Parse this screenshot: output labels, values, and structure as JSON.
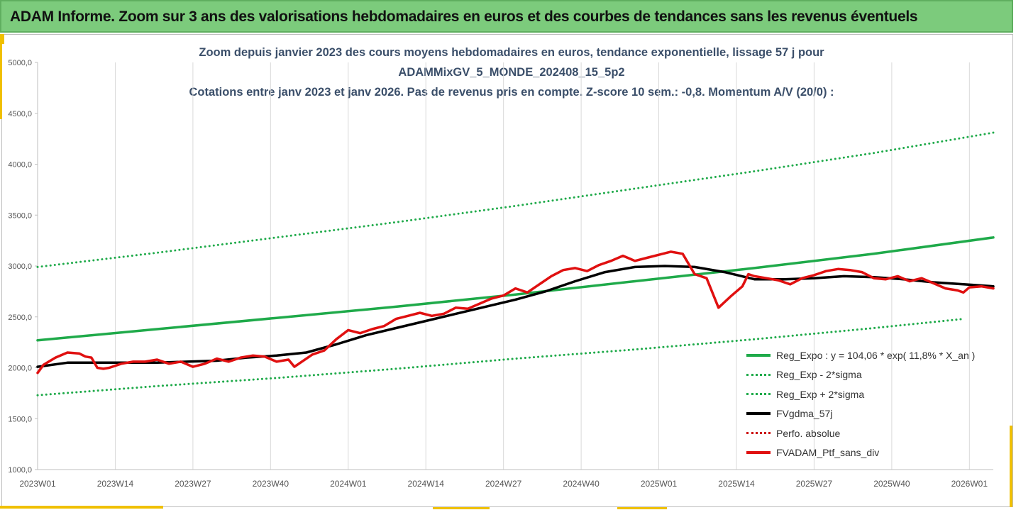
{
  "banner": {
    "title": "ADAM Informe. Zoom sur 3 ans des valorisations hebdomadaires en euros et des courbes de tendances sans les revenus éventuels"
  },
  "chart_data": {
    "type": "line",
    "title_lines": [
      "Zoom depuis janvier 2023 des cours moyens hebdomadaires  en euros, tendance exponentielle, lissage 57 j pour",
      "ADAMMixGV_5_MONDE_202408_15_5p2",
      "Cotations entre janv 2023 et janv 2026. Pas de revenus pris en compte. Z-score 10 sem.: -0,8. Momentum A/V (20/0) :"
    ],
    "xlabel": "",
    "ylabel": "",
    "ylim": [
      1000,
      5000
    ],
    "y_ticks": [
      "1000,0",
      "1500,0",
      "2000,0",
      "2500,0",
      "3000,0",
      "3500,0",
      "4000,0",
      "4500,0",
      "5000,0"
    ],
    "x_tick_labels": [
      "2023W01",
      "2023W14",
      "2023W27",
      "2023W40",
      "2024W01",
      "2024W14",
      "2024W27",
      "2024W40",
      "2025W01",
      "2025W14",
      "2025W27",
      "2025W40",
      "2026W01"
    ],
    "x_range_weeks": [
      0,
      160
    ],
    "grid": "vertical",
    "legend_position": "bottom-right",
    "series": [
      {
        "name": "Reg_Expo : y = 104,06 * exp( 11,8% *  X_an )",
        "color": "#1faa4a",
        "style": "solid",
        "x": [
          0,
          20,
          40,
          60,
          80,
          100,
          120,
          140,
          160
        ],
        "y": [
          2270,
          2380,
          2490,
          2600,
          2720,
          2850,
          2980,
          3120,
          3280
        ]
      },
      {
        "name": "Reg_Exp - 2*sigma",
        "color": "#1faa4a",
        "style": "dotted",
        "x": [
          0,
          20,
          40,
          60,
          80,
          100,
          120,
          140,
          155
        ],
        "y": [
          1730,
          1820,
          1900,
          1990,
          2090,
          2180,
          2280,
          2390,
          2480
        ]
      },
      {
        "name": "Reg_Exp + 2*sigma",
        "color": "#1faa4a",
        "style": "dotted",
        "x": [
          0,
          20,
          40,
          60,
          80,
          100,
          120,
          140,
          160
        ],
        "y": [
          2990,
          3130,
          3280,
          3430,
          3590,
          3760,
          3930,
          4110,
          4310
        ]
      },
      {
        "name": "FVgdma_57j",
        "color": "#000000",
        "style": "solid",
        "x": [
          0,
          5,
          10,
          15,
          20,
          25,
          30,
          35,
          40,
          45,
          50,
          55,
          60,
          65,
          70,
          75,
          80,
          85,
          90,
          95,
          100,
          105,
          110,
          115,
          120,
          125,
          130,
          135,
          140,
          145,
          150,
          155,
          160
        ],
        "y": [
          2010,
          2050,
          2050,
          2050,
          2050,
          2060,
          2070,
          2100,
          2120,
          2150,
          2230,
          2320,
          2390,
          2460,
          2530,
          2600,
          2670,
          2750,
          2850,
          2940,
          2990,
          3000,
          2990,
          2940,
          2870,
          2870,
          2880,
          2900,
          2890,
          2870,
          2840,
          2820,
          2800
        ]
      },
      {
        "name": "Perfo. absolue",
        "color": "#cc0000",
        "style": "dotted",
        "x": [],
        "y": []
      },
      {
        "name": "FVADAM_Ptf_sans_div",
        "color": "#e01010",
        "style": "solid",
        "x": [
          0,
          1,
          3,
          5,
          7,
          8,
          9,
          10,
          11,
          12,
          14,
          16,
          18,
          20,
          22,
          24,
          26,
          28,
          30,
          32,
          34,
          36,
          38,
          40,
          42,
          43,
          44,
          46,
          48,
          50,
          52,
          54,
          56,
          58,
          60,
          62,
          64,
          66,
          68,
          70,
          72,
          74,
          76,
          78,
          80,
          82,
          84,
          86,
          88,
          90,
          92,
          94,
          96,
          98,
          100,
          102,
          104,
          106,
          108,
          110,
          112,
          114,
          116,
          118,
          119,
          120,
          122,
          124,
          126,
          128,
          130,
          132,
          134,
          136,
          138,
          140,
          142,
          144,
          146,
          148,
          150,
          152,
          154,
          155,
          156,
          158,
          160
        ],
        "y": [
          1950,
          2030,
          2100,
          2150,
          2140,
          2110,
          2100,
          2000,
          1990,
          2000,
          2040,
          2060,
          2060,
          2080,
          2040,
          2060,
          2010,
          2040,
          2090,
          2060,
          2100,
          2120,
          2110,
          2060,
          2080,
          2010,
          2050,
          2130,
          2170,
          2280,
          2370,
          2340,
          2380,
          2410,
          2480,
          2510,
          2540,
          2510,
          2530,
          2590,
          2580,
          2630,
          2680,
          2710,
          2780,
          2740,
          2820,
          2900,
          2960,
          2980,
          2950,
          3010,
          3050,
          3100,
          3050,
          3080,
          3110,
          3140,
          3120,
          2920,
          2880,
          2590,
          2700,
          2800,
          2920,
          2900,
          2880,
          2860,
          2820,
          2880,
          2910,
          2950,
          2970,
          2960,
          2940,
          2880,
          2870,
          2900,
          2850,
          2880,
          2830,
          2780,
          2760,
          2740,
          2790,
          2800,
          2780
        ]
      }
    ]
  }
}
